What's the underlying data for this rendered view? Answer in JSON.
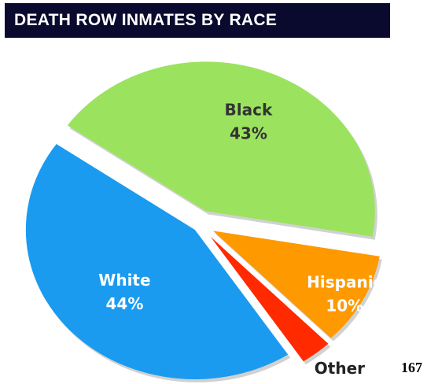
{
  "title": "DEATH ROW INMATES BY RACE",
  "page_number": "167",
  "chart_data": {
    "type": "pie",
    "title": "DEATH ROW INMATES BY RACE",
    "slices": [
      {
        "name": "Black",
        "value": 43,
        "percent_label": "43%",
        "color": "#9be35f",
        "label_color": "#333333"
      },
      {
        "name": "Hispanic",
        "value": 10,
        "percent_label": "10%",
        "color": "#ff9900",
        "label_color": "#ffffff"
      },
      {
        "name": "Other",
        "value": 3,
        "percent_label": "3%",
        "color": "#ff2a00",
        "label_color": "#222222"
      },
      {
        "name": "White",
        "value": 44,
        "percent_label": "44%",
        "color": "#1a9bf0",
        "label_color": "#ffffff"
      }
    ],
    "exploded": true,
    "legend": "none"
  }
}
